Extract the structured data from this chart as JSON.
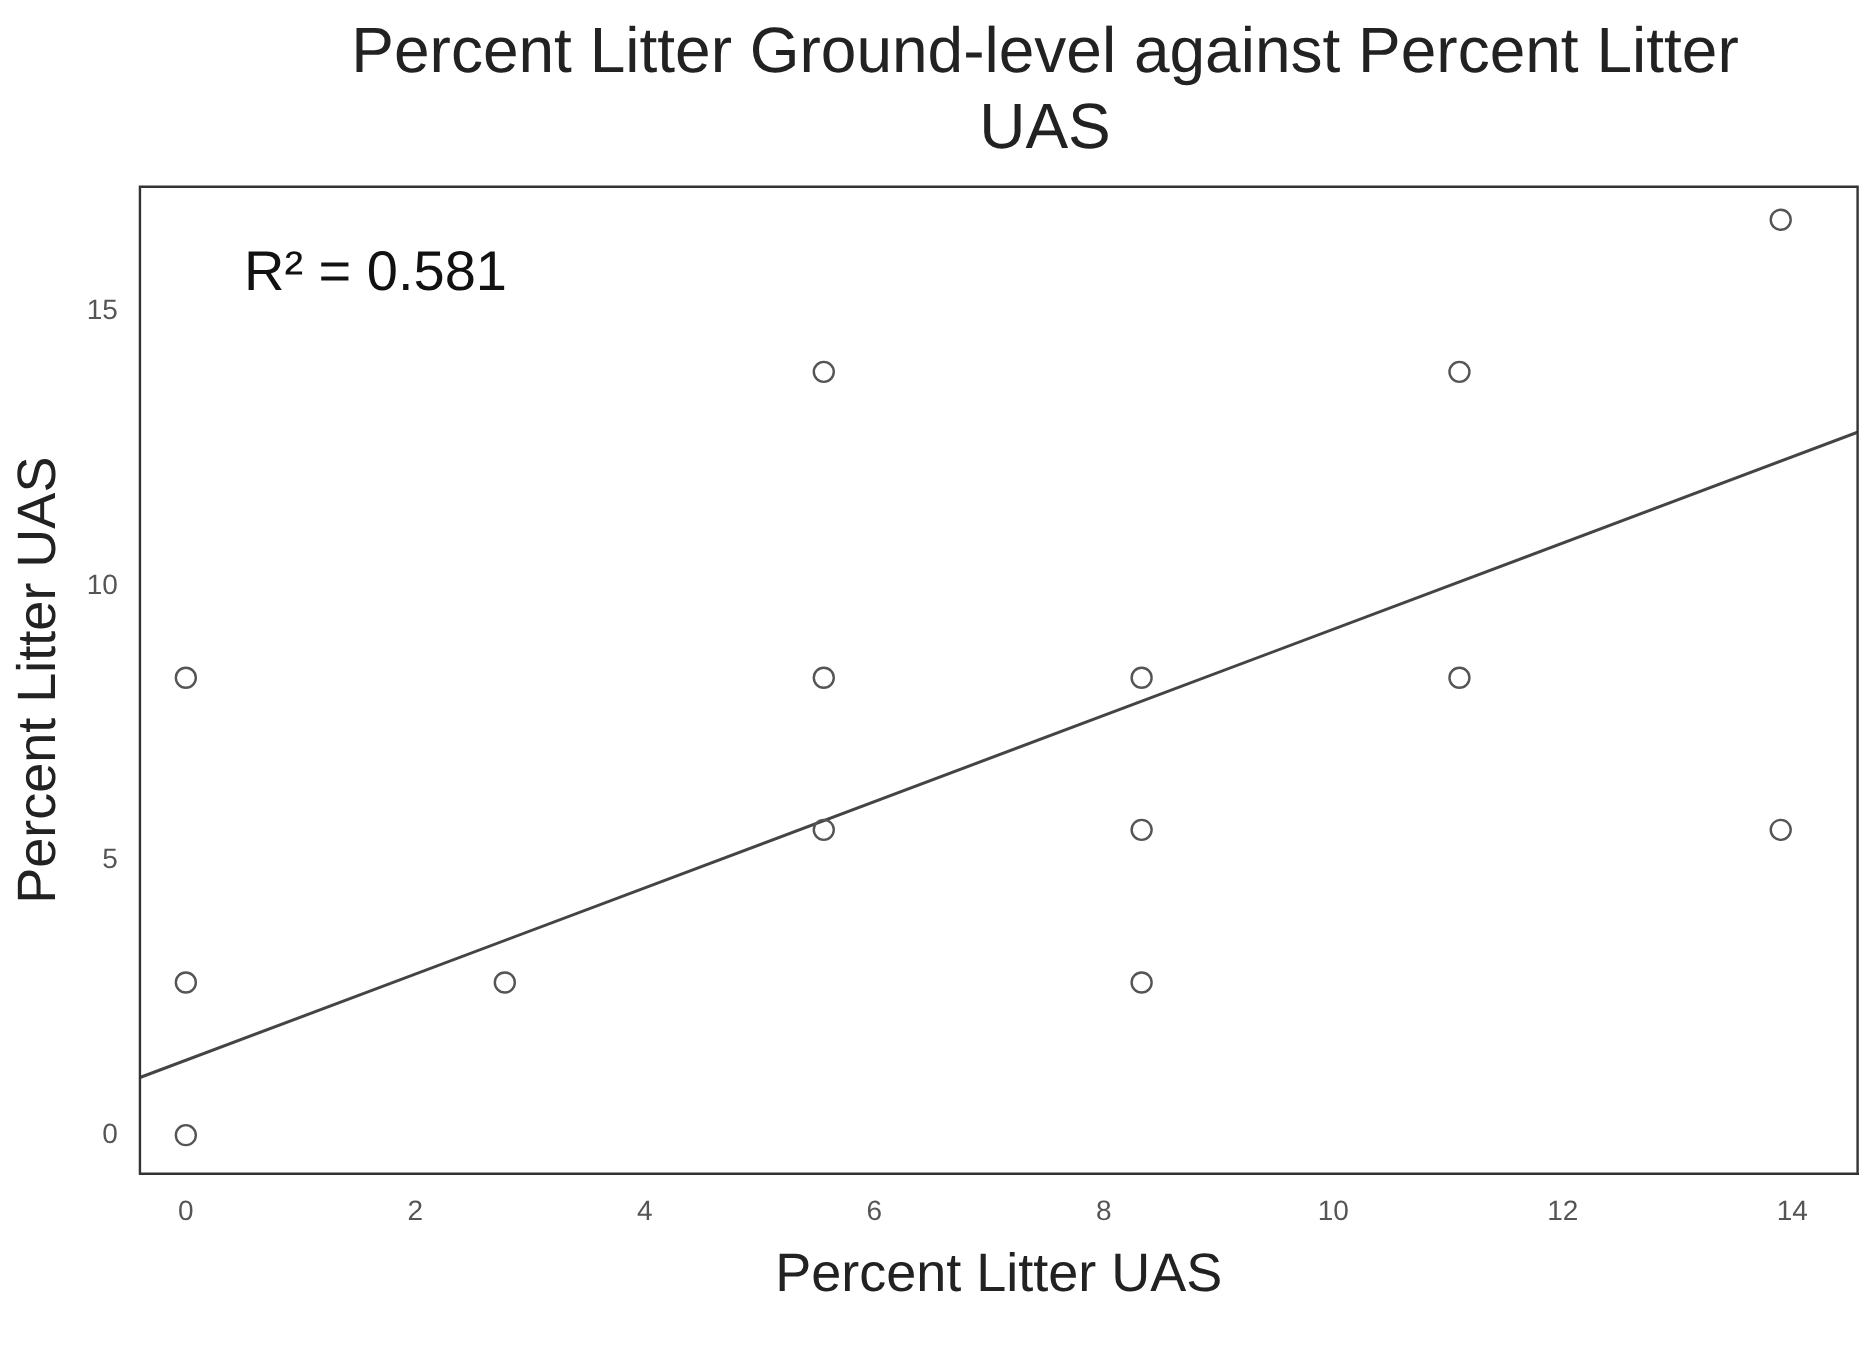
{
  "chart_data": {
    "type": "scatter",
    "title": "Percent Litter Ground-level against Percent Litter UAS",
    "xlabel": "Percent Litter UAS",
    "ylabel": "Percent Litter UAS",
    "annotations": [
      "R² = 0.581"
    ],
    "xlim": [
      -0.4,
      14.57
    ],
    "xticks": [
      0,
      2,
      4,
      6,
      8,
      10,
      12,
      14
    ],
    "ylim": [
      -0.7,
      17.27
    ],
    "yticks": [
      0,
      5,
      10,
      15
    ],
    "grid": false,
    "legend": false,
    "marker": "circle",
    "series": [
      {
        "type": "scatter",
        "color": "#555555",
        "x": [
          0,
          0,
          0,
          2.78,
          5.56,
          5.56,
          5.56,
          8.33,
          8.33,
          8.33,
          11.1,
          11.1,
          13.9,
          13.9
        ],
        "values": [
          0,
          2.78,
          8.33,
          2.78,
          5.56,
          8.33,
          13.9,
          2.78,
          5.56,
          8.33,
          8.33,
          13.9,
          5.56,
          16.67
        ]
      },
      {
        "type": "line",
        "color": "#444444",
        "x": [
          -0.4,
          14.57
        ],
        "values": [
          1.05,
          12.8
        ],
        "line_style": "solid",
        "marker": "none"
      }
    ]
  }
}
